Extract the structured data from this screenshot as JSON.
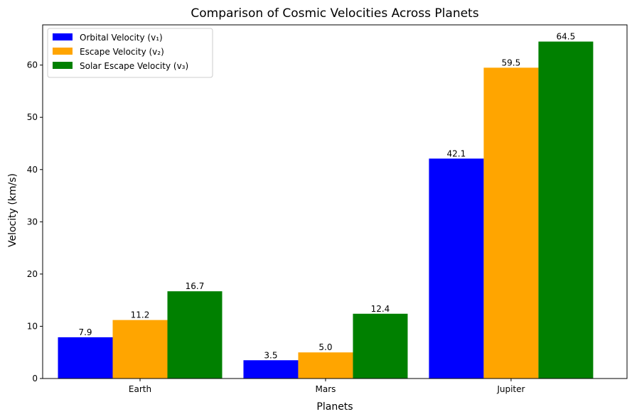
{
  "chart_data": {
    "type": "bar",
    "title": "Comparison of Cosmic Velocities Across Planets",
    "xlabel": "Planets",
    "ylabel": "Velocity (km/s)",
    "categories": [
      "Earth",
      "Mars",
      "Jupiter"
    ],
    "series": [
      {
        "name": "Orbital Velocity (v₁)",
        "color": "#0000ff",
        "values": [
          7.9,
          3.5,
          42.1
        ],
        "labels": [
          "7.9",
          "3.5",
          "42.1"
        ]
      },
      {
        "name": "Escape Velocity (v₂)",
        "color": "#ffa500",
        "values": [
          11.2,
          5.0,
          59.5
        ],
        "labels": [
          "11.2",
          "5.0",
          "59.5"
        ]
      },
      {
        "name": "Solar Escape Velocity (v₃)",
        "color": "#008000",
        "values": [
          16.7,
          12.4,
          64.5
        ],
        "labels": [
          "16.7",
          "12.4",
          "64.5"
        ]
      }
    ],
    "yticks": [
      "0",
      "10",
      "20",
      "30",
      "40",
      "50",
      "60"
    ],
    "ylim": [
      0,
      67.7
    ],
    "grid": false,
    "legend": "top-left"
  }
}
